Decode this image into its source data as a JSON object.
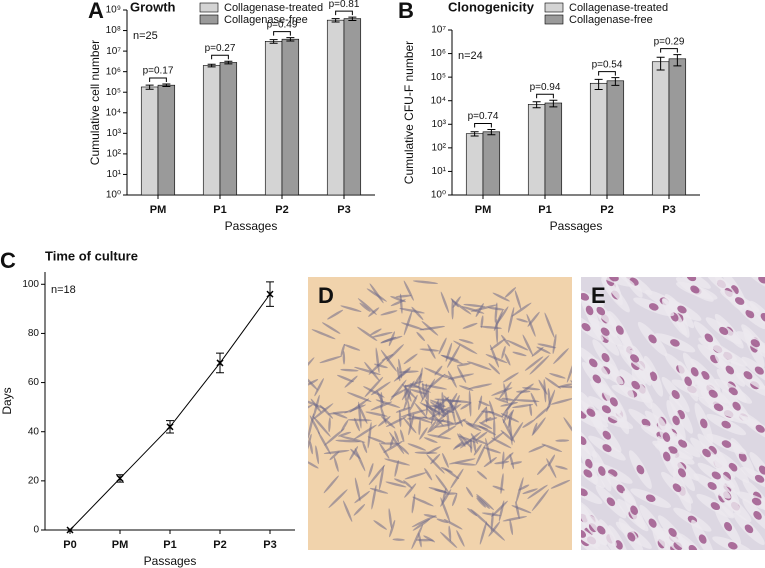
{
  "chart_data": [
    {
      "type": "bar",
      "panel": "A",
      "title": "Growth",
      "xlabel": "Passages",
      "ylabel": "Cumulative cell number",
      "note": "n=25",
      "log_y": true,
      "categories": [
        "PM",
        "P1",
        "P2",
        "P3"
      ],
      "series": [
        {
          "name": "Collagenase-treated",
          "color": "#d4d4d4",
          "values": [
            180000,
            2000000,
            30000000,
            320000000
          ],
          "errors": [
            40000,
            300000,
            6000000,
            60000000
          ]
        },
        {
          "name": "Collagenase-free",
          "color": "#9a9a9a",
          "values": [
            220000,
            2800000,
            38000000,
            380000000
          ],
          "errors": [
            30000,
            400000,
            7000000,
            70000000
          ]
        }
      ],
      "pvalues": [
        "p=0.17",
        "p=0.27",
        "p=0.49",
        "p=0.81"
      ],
      "ylim": [
        1,
        1000000000
      ],
      "yticks": [
        {
          "value": 1,
          "label": "10⁰"
        },
        {
          "value": 10,
          "label": "10¹"
        },
        {
          "value": 100,
          "label": "10²"
        },
        {
          "value": 1000,
          "label": "10³"
        },
        {
          "value": 10000,
          "label": "10⁴"
        },
        {
          "value": 100000,
          "label": "10⁵"
        },
        {
          "value": 1000000,
          "label": "10⁶"
        },
        {
          "value": 10000000,
          "label": "10⁷"
        },
        {
          "value": 100000000,
          "label": "10⁸"
        },
        {
          "value": 1000000000,
          "label": "10⁹"
        }
      ]
    },
    {
      "type": "bar",
      "panel": "B",
      "title": "Clonogenicity",
      "xlabel": "Passages",
      "ylabel": "Cumulative CFU-F number",
      "note": "n=24",
      "log_y": true,
      "categories": [
        "PM",
        "P1",
        "P2",
        "P3"
      ],
      "series": [
        {
          "name": "Collagenase-treated",
          "color": "#d4d4d4",
          "values": [
            400,
            7000,
            55000,
            450000
          ],
          "errors": [
            80,
            2000,
            25000,
            250000
          ]
        },
        {
          "name": "Collagenase-free",
          "color": "#9a9a9a",
          "values": [
            480,
            8000,
            70000,
            600000
          ],
          "errors": [
            120,
            2500,
            25000,
            300000
          ]
        }
      ],
      "pvalues": [
        "p=0.74",
        "p=0.94",
        "p=0.54",
        "p=0.29"
      ],
      "ylim": [
        1,
        10000000
      ],
      "yticks": [
        {
          "value": 1,
          "label": "10⁰"
        },
        {
          "value": 10,
          "label": "10¹"
        },
        {
          "value": 100,
          "label": "10²"
        },
        {
          "value": 1000,
          "label": "10³"
        },
        {
          "value": 10000,
          "label": "10⁴"
        },
        {
          "value": 100000,
          "label": "10⁵"
        },
        {
          "value": 1000000,
          "label": "10⁶"
        },
        {
          "value": 10000000,
          "label": "10⁷"
        }
      ]
    },
    {
      "type": "line",
      "panel": "C",
      "title": "Time of culture",
      "xlabel": "Passages",
      "ylabel": "Days",
      "note": "n=18",
      "categories": [
        "P0",
        "PM",
        "P1",
        "P2",
        "P3"
      ],
      "color": "#000000",
      "values": [
        0,
        21,
        42,
        68,
        96
      ],
      "errors": [
        0,
        1.5,
        2.5,
        4,
        5
      ],
      "ylim": [
        0,
        105
      ],
      "yticks": [
        0,
        20,
        40,
        60,
        80,
        100
      ]
    }
  ],
  "images": [
    {
      "panel": "D"
    },
    {
      "panel": "E"
    }
  ]
}
